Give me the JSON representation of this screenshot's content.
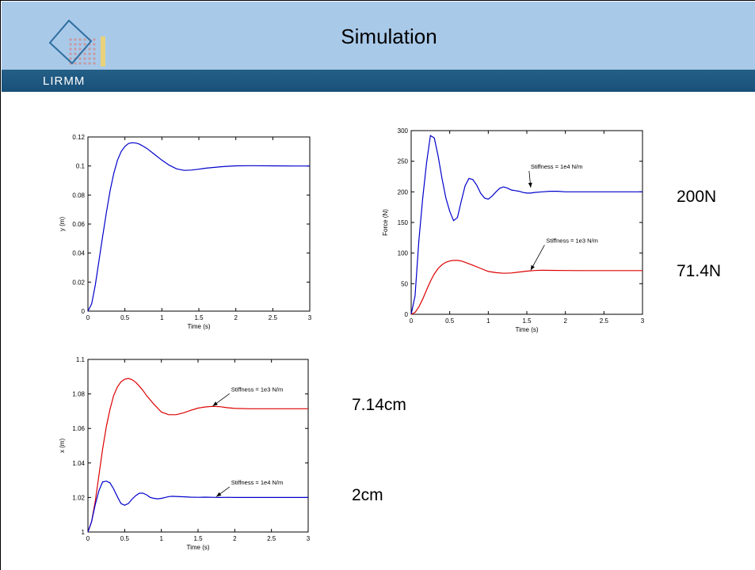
{
  "header": {
    "title": "Simulation",
    "logo_text": "LIRMM"
  },
  "annotations": {
    "a200": "200N",
    "a71": "71.4N",
    "a714": "7.14cm",
    "a2": "2cm"
  },
  "chart_data": [
    {
      "type": "line",
      "xlabel": "Time (s)",
      "ylabel": "y (m)",
      "xlim": [
        0,
        3
      ],
      "ylim": [
        0,
        0.12
      ],
      "xticks": [
        0,
        0.5,
        1,
        1.5,
        2,
        2.5,
        3
      ],
      "yticks": [
        0,
        0.02,
        0.04,
        0.06,
        0.08,
        0.1,
        0.12
      ],
      "series": [
        {
          "color": "#0000cc",
          "x": [
            0,
            0.05,
            0.1,
            0.15,
            0.2,
            0.25,
            0.3,
            0.35,
            0.4,
            0.45,
            0.5,
            0.55,
            0.6,
            0.65,
            0.7,
            0.75,
            0.8,
            0.9,
            1.0,
            1.1,
            1.2,
            1.3,
            1.4,
            1.5,
            1.6,
            1.7,
            1.8,
            1.9,
            2.0,
            2.2,
            2.5,
            2.8,
            3.0
          ],
          "y": [
            0,
            0.005,
            0.018,
            0.035,
            0.052,
            0.068,
            0.083,
            0.095,
            0.104,
            0.11,
            0.1135,
            0.1155,
            0.116,
            0.1158,
            0.115,
            0.1135,
            0.112,
            0.108,
            0.104,
            0.1005,
            0.098,
            0.097,
            0.0972,
            0.0978,
            0.0985,
            0.099,
            0.0995,
            0.0998,
            0.1001,
            0.1002,
            0.1001,
            0.1,
            0.1
          ]
        }
      ]
    },
    {
      "type": "line",
      "xlabel": "Time (s)",
      "ylabel": "Force (N)",
      "xlim": [
        0,
        3
      ],
      "ylim": [
        0,
        300
      ],
      "xticks": [
        0,
        0.5,
        1,
        1.5,
        2,
        2.5,
        3
      ],
      "yticks": [
        0,
        50,
        100,
        150,
        200,
        250,
        300
      ],
      "annotations": [
        {
          "text": "Stiffness = 1e4 N/m",
          "x": 1.55,
          "y": 238,
          "ax": 1.55,
          "ay": 207
        },
        {
          "text": "Stiffness = 1e3 N/m",
          "x": 1.75,
          "y": 117,
          "ax": 1.55,
          "ay": 72
        }
      ],
      "series": [
        {
          "color": "#0000cc",
          "x": [
            0,
            0.05,
            0.1,
            0.15,
            0.2,
            0.25,
            0.3,
            0.35,
            0.4,
            0.45,
            0.5,
            0.55,
            0.6,
            0.65,
            0.7,
            0.75,
            0.8,
            0.85,
            0.9,
            0.95,
            1.0,
            1.05,
            1.1,
            1.15,
            1.2,
            1.25,
            1.3,
            1.35,
            1.4,
            1.45,
            1.5,
            1.55,
            1.6,
            1.7,
            1.8,
            1.9,
            2.0,
            2.1,
            2.2,
            2.4,
            2.6,
            2.8,
            3.0
          ],
          "y": [
            0,
            30,
            120,
            190,
            248,
            292,
            288,
            258,
            222,
            190,
            168,
            153,
            158,
            185,
            210,
            222,
            220,
            211,
            198,
            190,
            188,
            193,
            200,
            206,
            208,
            206,
            203,
            202,
            201,
            199,
            198,
            198,
            199,
            200,
            201,
            201,
            200,
            200,
            200,
            200,
            200,
            200,
            200
          ]
        },
        {
          "color": "#dd0000",
          "x": [
            0,
            0.05,
            0.1,
            0.15,
            0.2,
            0.25,
            0.3,
            0.35,
            0.4,
            0.45,
            0.5,
            0.55,
            0.6,
            0.65,
            0.7,
            0.8,
            0.9,
            1.0,
            1.1,
            1.2,
            1.3,
            1.4,
            1.5,
            1.6,
            1.7,
            1.8,
            2.0,
            2.2,
            2.5,
            2.8,
            3.0
          ],
          "y": [
            0,
            3,
            12,
            25,
            40,
            54,
            66,
            75,
            81,
            85,
            87,
            88,
            88,
            87,
            85,
            80,
            75,
            70,
            68,
            67,
            67.5,
            69,
            70.5,
            71.5,
            72,
            71.8,
            71.5,
            71.4,
            71.4,
            71.4,
            71.4
          ]
        }
      ]
    },
    {
      "type": "line",
      "xlabel": "Time (s)",
      "ylabel": "x (m)",
      "xlim": [
        0,
        3
      ],
      "ylim": [
        1,
        1.1
      ],
      "xticks": [
        0,
        0.5,
        1,
        1.5,
        2,
        2.5,
        3
      ],
      "yticks": [
        1,
        1.02,
        1.04,
        1.06,
        1.08,
        1.1
      ],
      "annotations": [
        {
          "text": "Stiffness = 1e3 N/m",
          "x": 1.95,
          "y": 1.0815,
          "ax": 1.7,
          "ay": 1.073
        },
        {
          "text": "Stiffness = 1e4 N/m",
          "x": 1.95,
          "y": 1.0275,
          "ax": 1.75,
          "ay": 1.0205
        }
      ],
      "series": [
        {
          "color": "#dd0000",
          "x": [
            0,
            0.05,
            0.1,
            0.15,
            0.2,
            0.25,
            0.3,
            0.35,
            0.4,
            0.45,
            0.5,
            0.55,
            0.6,
            0.65,
            0.7,
            0.75,
            0.8,
            0.9,
            1.0,
            1.1,
            1.2,
            1.3,
            1.4,
            1.5,
            1.6,
            1.7,
            1.8,
            1.9,
            2.0,
            2.2,
            2.5,
            2.8,
            3.0
          ],
          "y": [
            1.0,
            1.006,
            1.018,
            1.033,
            1.048,
            1.061,
            1.071,
            1.079,
            1.084,
            1.087,
            1.0885,
            1.089,
            1.0883,
            1.0868,
            1.0845,
            1.082,
            1.079,
            1.074,
            1.0695,
            1.068,
            1.068,
            1.069,
            1.0705,
            1.0718,
            1.0725,
            1.0728,
            1.0726,
            1.072,
            1.0716,
            1.0714,
            1.0714,
            1.0714,
            1.0714
          ]
        },
        {
          "color": "#0000cc",
          "x": [
            0,
            0.05,
            0.1,
            0.15,
            0.2,
            0.25,
            0.3,
            0.35,
            0.4,
            0.45,
            0.5,
            0.55,
            0.6,
            0.65,
            0.7,
            0.75,
            0.8,
            0.85,
            0.9,
            0.95,
            1.0,
            1.05,
            1.1,
            1.15,
            1.2,
            1.3,
            1.4,
            1.5,
            1.6,
            1.7,
            1.8,
            1.9,
            2.0,
            2.2,
            2.5,
            2.8,
            3.0
          ],
          "y": [
            1.0,
            1.006,
            1.016,
            1.024,
            1.029,
            1.0295,
            1.0285,
            1.025,
            1.0205,
            1.0165,
            1.0155,
            1.0165,
            1.019,
            1.021,
            1.0225,
            1.0225,
            1.0215,
            1.02,
            1.0195,
            1.0192,
            1.0195,
            1.02,
            1.0205,
            1.0207,
            1.0206,
            1.0204,
            1.0202,
            1.0201,
            1.0202,
            1.0201,
            1.02,
            1.0201,
            1.02,
            1.02,
            1.02,
            1.02,
            1.02
          ]
        }
      ]
    }
  ]
}
